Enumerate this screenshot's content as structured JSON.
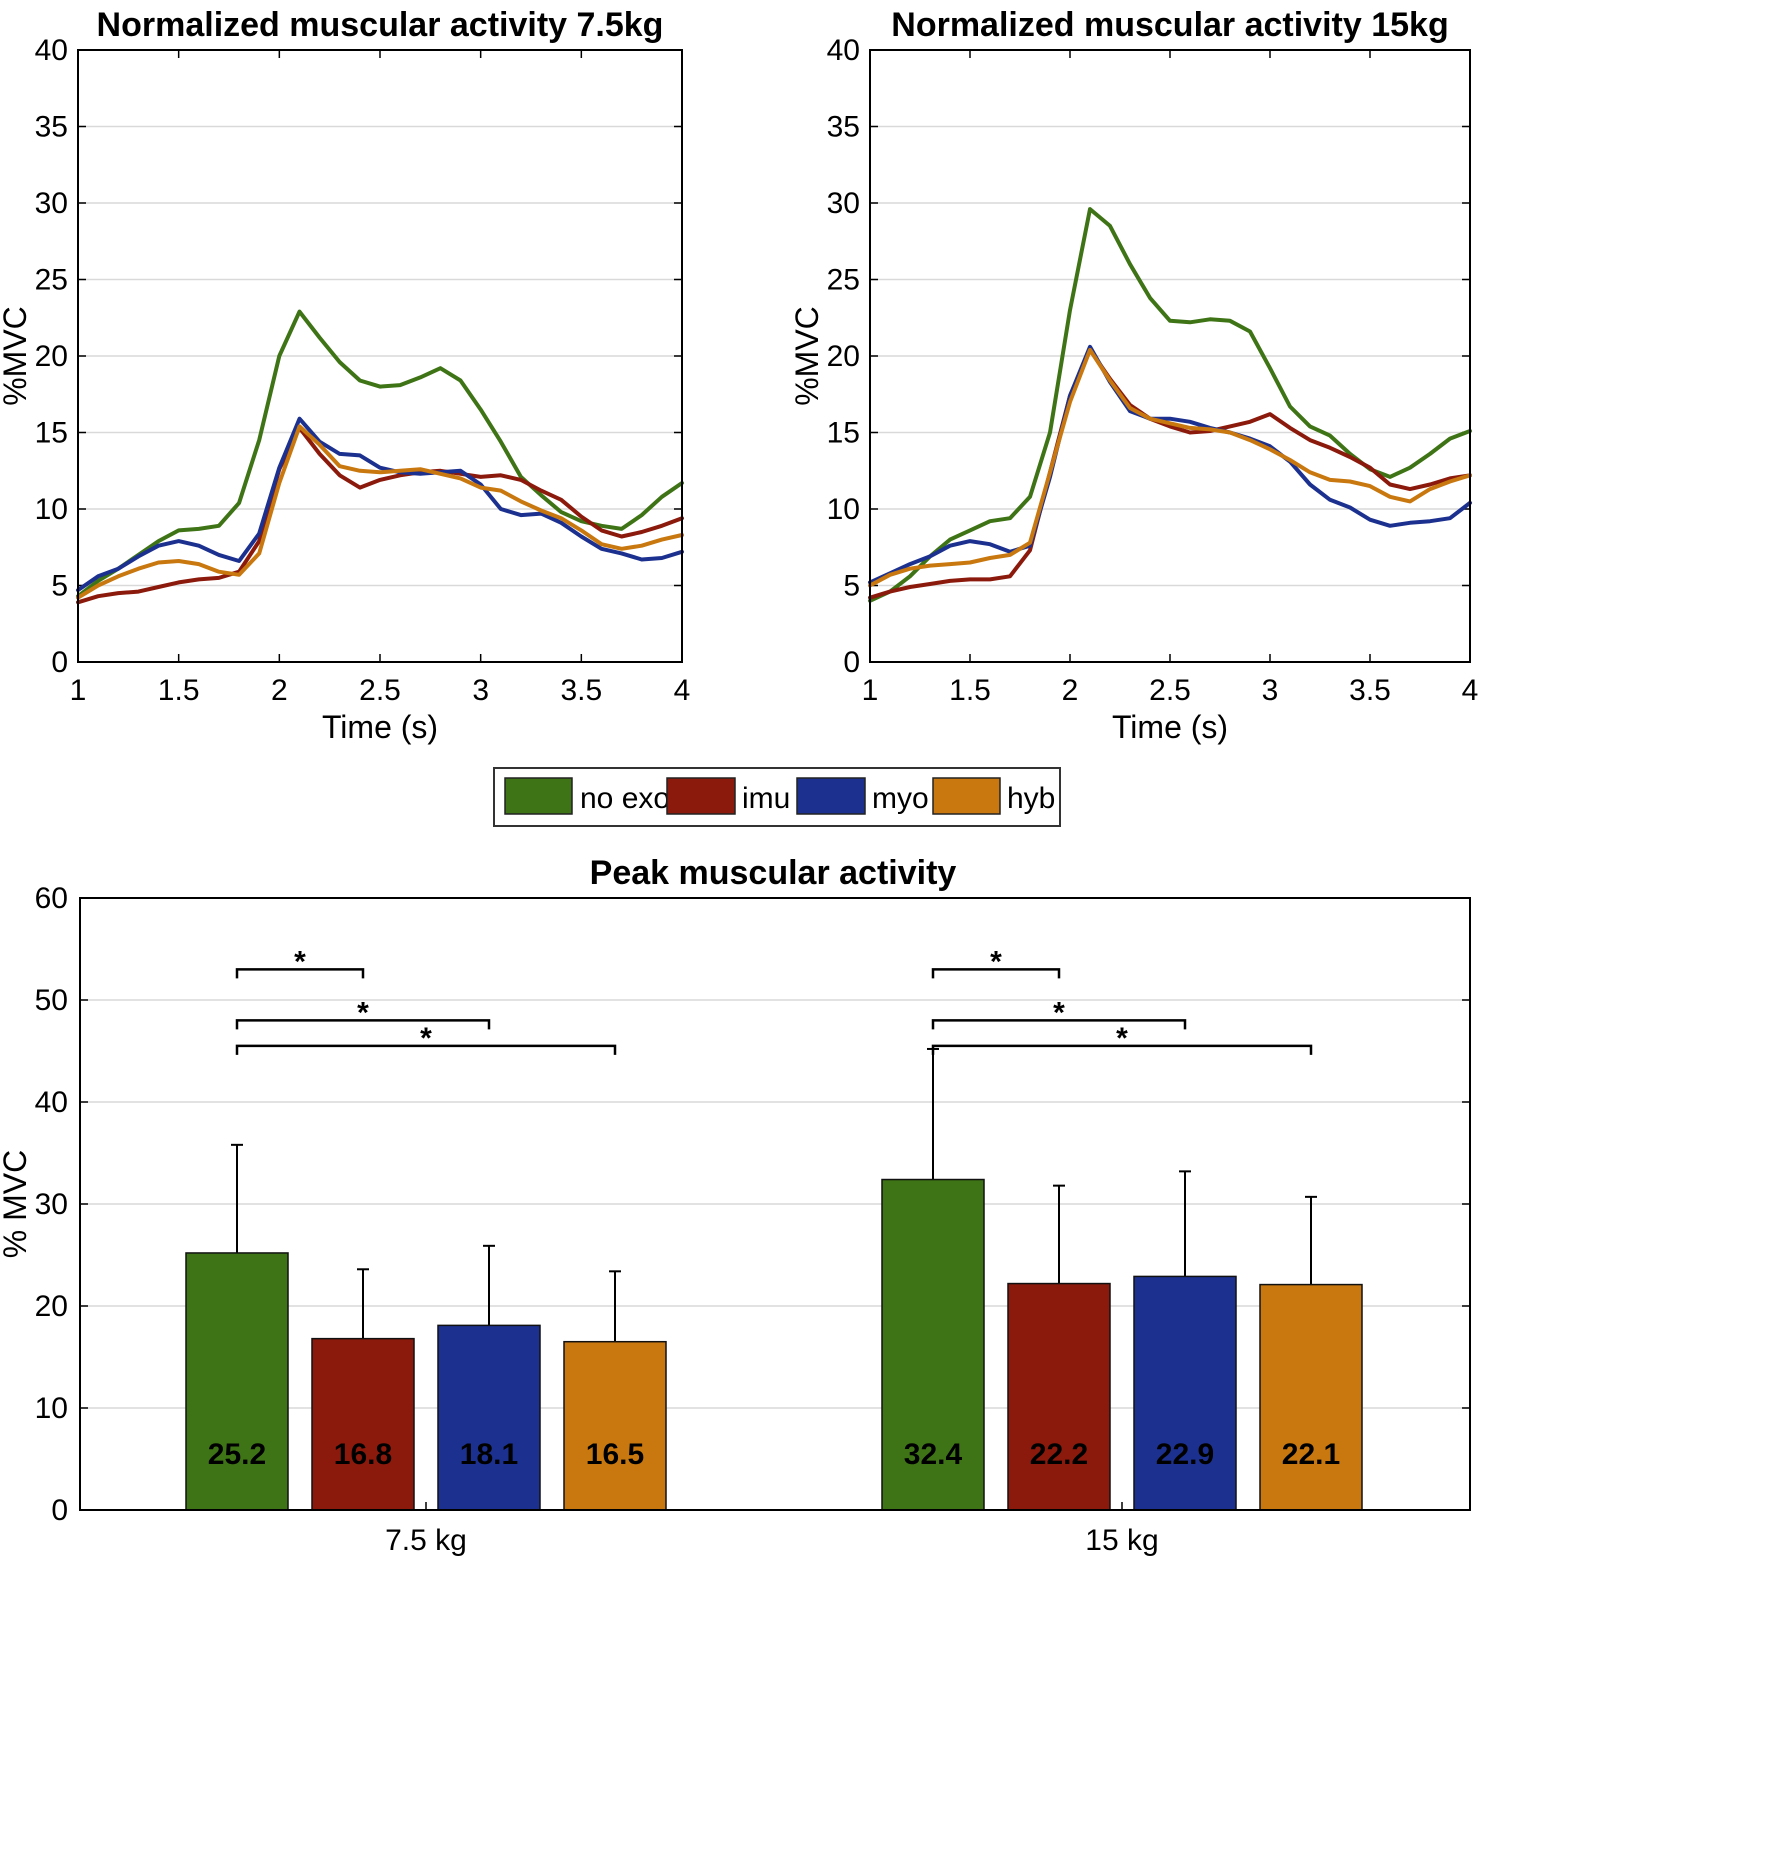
{
  "chart_data": [
    {
      "type": "line",
      "title": "Normalized muscular activity 7.5kg",
      "xlabel": "Time (s)",
      "ylabel": "%MVC",
      "xlim": [
        1,
        4
      ],
      "ylim": [
        0,
        40
      ],
      "xticks": [
        "1",
        "1.5",
        "2",
        "2.5",
        "3",
        "3.5",
        "4"
      ],
      "yticks": [
        "0",
        "5",
        "10",
        "15",
        "20",
        "25",
        "30",
        "35",
        "40"
      ],
      "x": [
        1.0,
        1.1,
        1.2,
        1.3,
        1.4,
        1.5,
        1.6,
        1.7,
        1.8,
        1.9,
        2.0,
        2.1,
        2.2,
        2.3,
        2.4,
        2.5,
        2.6,
        2.7,
        2.8,
        2.9,
        3.0,
        3.1,
        3.2,
        3.3,
        3.4,
        3.5,
        3.6,
        3.7,
        3.8,
        3.9,
        4.0
      ],
      "series": [
        {
          "name": "no exo",
          "color": "#3f7416",
          "values": [
            4.3,
            5.3,
            6.1,
            7.0,
            7.9,
            8.6,
            8.7,
            8.9,
            10.4,
            14.5,
            20.0,
            22.9,
            21.2,
            19.6,
            18.4,
            18.0,
            18.1,
            18.6,
            19.2,
            18.4,
            16.5,
            14.4,
            12.1,
            10.9,
            9.8,
            9.2,
            8.9,
            8.7,
            9.6,
            10.8,
            11.7
          ]
        },
        {
          "name": "imu",
          "color": "#8b1a0c",
          "values": [
            3.9,
            4.3,
            4.5,
            4.6,
            4.9,
            5.2,
            5.4,
            5.5,
            5.9,
            7.9,
            12.6,
            15.3,
            13.6,
            12.2,
            11.4,
            11.9,
            12.2,
            12.4,
            12.5,
            12.3,
            12.1,
            12.2,
            11.9,
            11.2,
            10.6,
            9.5,
            8.6,
            8.2,
            8.5,
            8.9,
            9.4
          ]
        },
        {
          "name": "myo",
          "color": "#1c318f",
          "values": [
            4.7,
            5.6,
            6.1,
            6.9,
            7.6,
            7.9,
            7.6,
            7.0,
            6.6,
            8.4,
            12.7,
            15.9,
            14.4,
            13.6,
            13.5,
            12.7,
            12.4,
            12.3,
            12.4,
            12.5,
            11.6,
            10.0,
            9.6,
            9.7,
            9.1,
            8.2,
            7.4,
            7.1,
            6.7,
            6.8,
            7.2
          ]
        },
        {
          "name": "hyb",
          "color": "#c8780f",
          "values": [
            4.2,
            5.0,
            5.6,
            6.1,
            6.5,
            6.6,
            6.4,
            5.9,
            5.7,
            7.1,
            11.7,
            15.4,
            14.2,
            12.8,
            12.5,
            12.4,
            12.5,
            12.6,
            12.3,
            12.0,
            11.4,
            11.2,
            10.5,
            9.9,
            9.4,
            8.6,
            7.7,
            7.4,
            7.6,
            8.0,
            8.3
          ]
        }
      ]
    },
    {
      "type": "line",
      "title": "Normalized muscular activity 15kg",
      "xlabel": "Time (s)",
      "ylabel": "%MVC",
      "xlim": [
        1,
        4
      ],
      "ylim": [
        0,
        40
      ],
      "xticks": [
        "1",
        "1.5",
        "2",
        "2.5",
        "3",
        "3.5",
        "4"
      ],
      "yticks": [
        "0",
        "5",
        "10",
        "15",
        "20",
        "25",
        "30",
        "35",
        "40"
      ],
      "x": [
        1.0,
        1.1,
        1.2,
        1.3,
        1.4,
        1.5,
        1.6,
        1.7,
        1.8,
        1.9,
        2.0,
        2.1,
        2.2,
        2.3,
        2.4,
        2.5,
        2.6,
        2.7,
        2.8,
        2.9,
        3.0,
        3.1,
        3.2,
        3.3,
        3.4,
        3.5,
        3.6,
        3.7,
        3.8,
        3.9,
        4.0
      ],
      "series": [
        {
          "name": "no exo",
          "color": "#3f7416",
          "values": [
            4.0,
            4.6,
            5.6,
            6.9,
            8.0,
            8.6,
            9.2,
            9.4,
            10.8,
            15.0,
            23.0,
            29.6,
            28.5,
            26.0,
            23.8,
            22.3,
            22.2,
            22.4,
            22.3,
            21.6,
            19.2,
            16.7,
            15.4,
            14.8,
            13.6,
            12.6,
            12.1,
            12.7,
            13.6,
            14.6,
            15.1
          ]
        },
        {
          "name": "imu",
          "color": "#8b1a0c",
          "values": [
            4.2,
            4.6,
            4.9,
            5.1,
            5.3,
            5.4,
            5.4,
            5.6,
            7.3,
            12.4,
            17.4,
            20.4,
            18.5,
            16.8,
            15.9,
            15.4,
            15.0,
            15.1,
            15.4,
            15.7,
            16.2,
            15.3,
            14.5,
            14.0,
            13.4,
            12.7,
            11.6,
            11.3,
            11.6,
            12.0,
            12.2
          ]
        },
        {
          "name": "myo",
          "color": "#1c318f",
          "values": [
            5.2,
            5.8,
            6.4,
            6.9,
            7.6,
            7.9,
            7.7,
            7.2,
            7.6,
            12.1,
            17.4,
            20.6,
            18.3,
            16.4,
            15.9,
            15.9,
            15.7,
            15.3,
            15.0,
            14.6,
            14.1,
            13.1,
            11.6,
            10.6,
            10.1,
            9.3,
            8.9,
            9.1,
            9.2,
            9.4,
            10.4
          ]
        },
        {
          "name": "hyb",
          "color": "#c8780f",
          "values": [
            5.0,
            5.7,
            6.1,
            6.3,
            6.4,
            6.5,
            6.8,
            7.0,
            7.8,
            12.4,
            17.0,
            20.4,
            18.4,
            16.6,
            15.9,
            15.6,
            15.3,
            15.2,
            15.0,
            14.5,
            13.9,
            13.2,
            12.4,
            11.9,
            11.8,
            11.5,
            10.8,
            10.5,
            11.3,
            11.8,
            12.2
          ]
        }
      ]
    },
    {
      "type": "bar",
      "title": "Peak muscular activity",
      "xlabel": "",
      "ylabel": "% MVC",
      "ylim": [
        0,
        60
      ],
      "yticks": [
        "0",
        "10",
        "20",
        "30",
        "40",
        "50",
        "60"
      ],
      "categories": [
        "7.5 kg",
        "15 kg"
      ],
      "series": [
        {
          "name": "no exo",
          "color": "#3f7416",
          "values": [
            25.2,
            32.4
          ],
          "labels": [
            "25.2",
            "32.4"
          ],
          "errors": [
            10.6,
            12.8
          ]
        },
        {
          "name": "imu",
          "color": "#8b1a0c",
          "values": [
            16.8,
            22.2
          ],
          "labels": [
            "16.8",
            "22.2"
          ],
          "errors": [
            6.8,
            9.6
          ]
        },
        {
          "name": "myo",
          "color": "#1c318f",
          "values": [
            18.1,
            22.9
          ],
          "labels": [
            "18.1",
            "22.9"
          ],
          "errors": [
            7.8,
            10.3
          ]
        },
        {
          "name": "hyb",
          "color": "#c8780f",
          "values": [
            16.5,
            22.1
          ],
          "labels": [
            "16.5",
            "22.1"
          ],
          "errors": [
            6.9,
            8.6
          ]
        }
      ],
      "significance": [
        {
          "group": 0,
          "from": 0,
          "to": 1,
          "y": 53.0,
          "mark": "*"
        },
        {
          "group": 0,
          "from": 0,
          "to": 2,
          "y": 48.0,
          "mark": "*"
        },
        {
          "group": 0,
          "from": 0,
          "to": 3,
          "y": 45.5,
          "mark": "*"
        },
        {
          "group": 1,
          "from": 0,
          "to": 1,
          "y": 53.0,
          "mark": "*"
        },
        {
          "group": 1,
          "from": 0,
          "to": 2,
          "y": 48.0,
          "mark": "*"
        },
        {
          "group": 1,
          "from": 0,
          "to": 3,
          "y": 45.5,
          "mark": "*"
        }
      ]
    }
  ],
  "legend": {
    "items": [
      {
        "label": "no exo",
        "color": "#3f7416"
      },
      {
        "label": "imu",
        "color": "#8b1a0c"
      },
      {
        "label": "myo",
        "color": "#1c318f"
      },
      {
        "label": "hyb",
        "color": "#c8780f"
      }
    ]
  }
}
